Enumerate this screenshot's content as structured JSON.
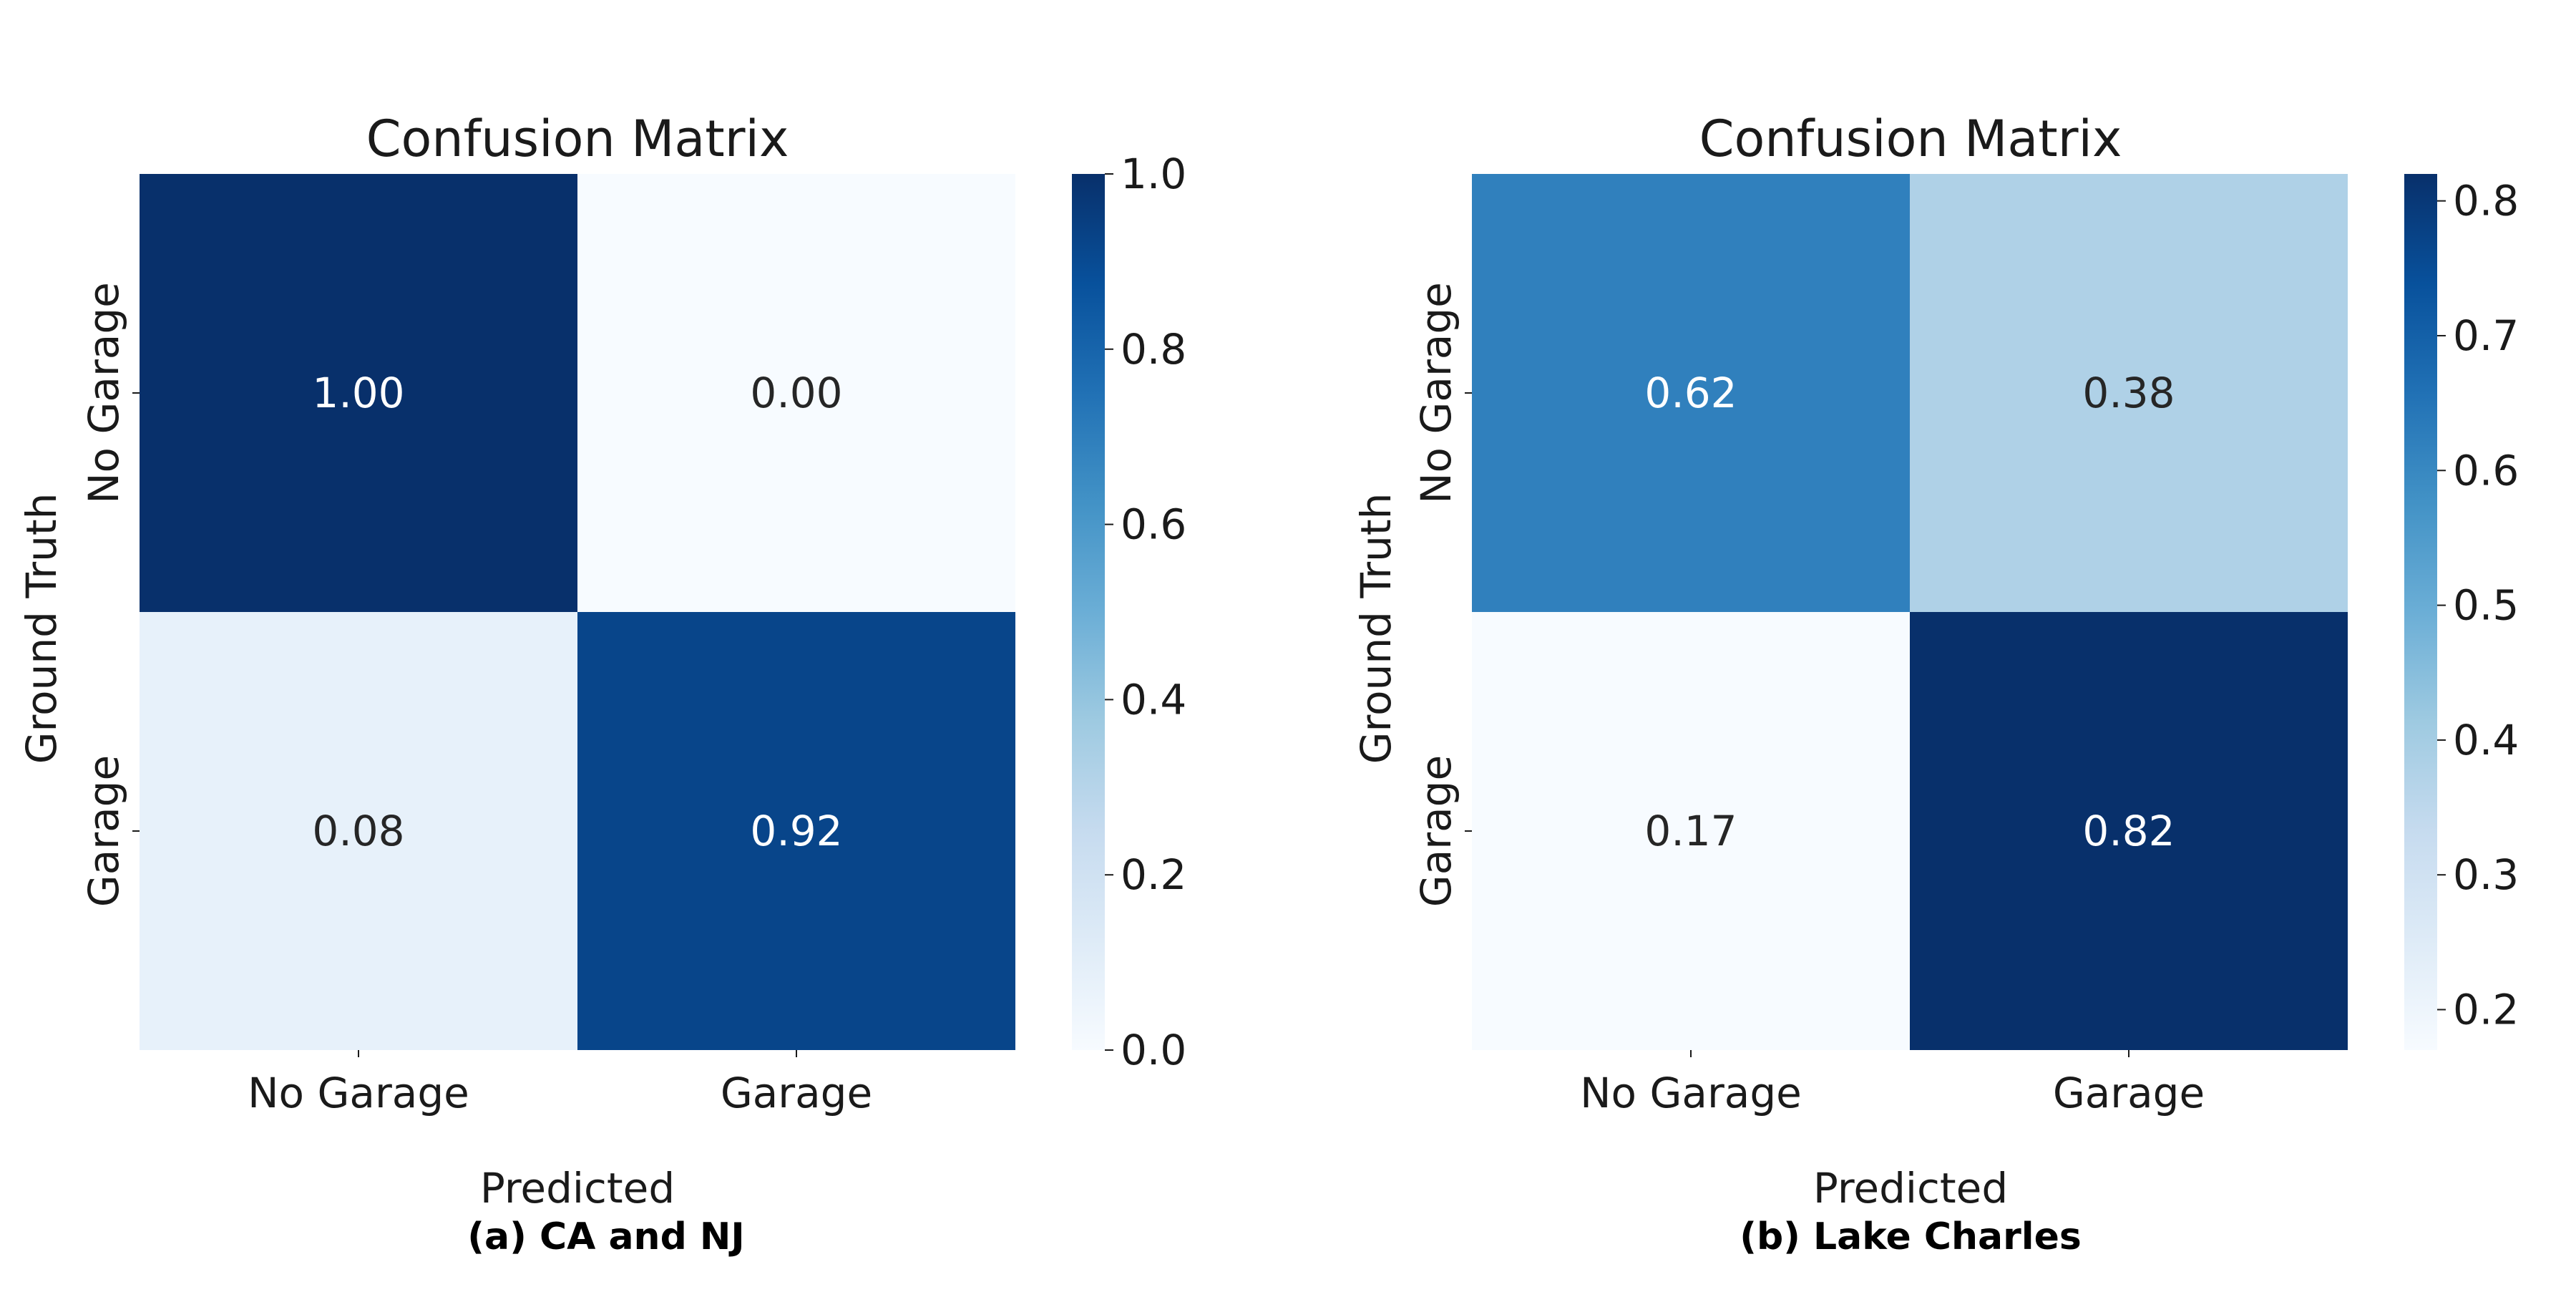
{
  "chart_data": [
    {
      "type": "heatmap",
      "title": "Confusion Matrix",
      "xlabel": "Predicted",
      "ylabel": "Ground Truth",
      "x_categories": [
        "No Garage",
        "Garage"
      ],
      "y_categories": [
        "No Garage",
        "Garage"
      ],
      "values": [
        [
          1.0,
          0.0
        ],
        [
          0.08,
          0.92
        ]
      ],
      "value_labels": [
        [
          "1.00",
          "0.00"
        ],
        [
          "0.08",
          "0.92"
        ]
      ],
      "colormap": "Blues",
      "colorbar": {
        "min": 0.0,
        "max": 1.0,
        "ticks": [
          "0.0",
          "0.2",
          "0.4",
          "0.6",
          "0.8",
          "1.0"
        ]
      },
      "caption": "(a) CA and NJ"
    },
    {
      "type": "heatmap",
      "title": "Confusion Matrix",
      "xlabel": "Predicted",
      "ylabel": "Ground Truth",
      "x_categories": [
        "No Garage",
        "Garage"
      ],
      "y_categories": [
        "No Garage",
        "Garage"
      ],
      "values": [
        [
          0.62,
          0.38
        ],
        [
          0.17,
          0.82
        ]
      ],
      "value_labels": [
        [
          "0.62",
          "0.38"
        ],
        [
          "0.17",
          "0.82"
        ]
      ],
      "colormap": "Blues",
      "colorbar": {
        "min": 0.17,
        "max": 0.82,
        "ticks": [
          "0.2",
          "0.3",
          "0.4",
          "0.5",
          "0.6",
          "0.7",
          "0.8"
        ]
      },
      "caption": "(b) Lake Charles"
    }
  ],
  "colors": {
    "blues_low": "#f7fbff",
    "blues_high": "#08306b",
    "text_dark": "#262626",
    "text_light": "#ffffff"
  }
}
